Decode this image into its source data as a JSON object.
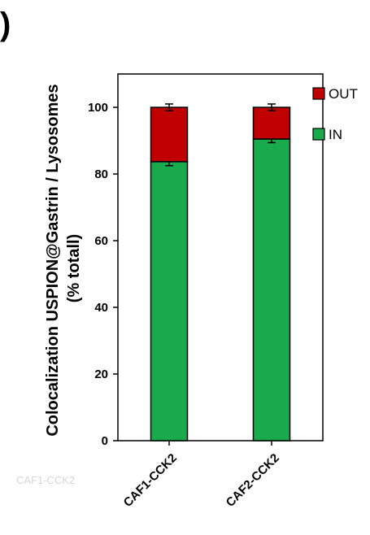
{
  "panel_label": ")",
  "watermark": "CAF1-CCK2",
  "chart_data": {
    "type": "bar",
    "stacked": true,
    "categories": [
      "CAF1-CCK2",
      "CAF2-CCK2"
    ],
    "series": [
      {
        "name": "IN",
        "values": [
          83.7,
          90.5
        ],
        "errors": [
          1.2,
          1.1
        ],
        "color": "#1aaa4e"
      },
      {
        "name": "OUT",
        "values": [
          16.3,
          9.5
        ],
        "errors": [
          1.0,
          1.0
        ],
        "color": "#c00000"
      }
    ],
    "title": "",
    "xlabel": "",
    "ylabel_line1": "Colocalization USPION@Gastrin / Lysosomes",
    "ylabel_line2": "(% totall)",
    "ylim": [
      0,
      110
    ],
    "yticks": [
      0,
      20,
      40,
      60,
      80,
      100
    ],
    "grid": false,
    "legend_position": "right",
    "legend_order": [
      "OUT",
      "IN"
    ]
  }
}
